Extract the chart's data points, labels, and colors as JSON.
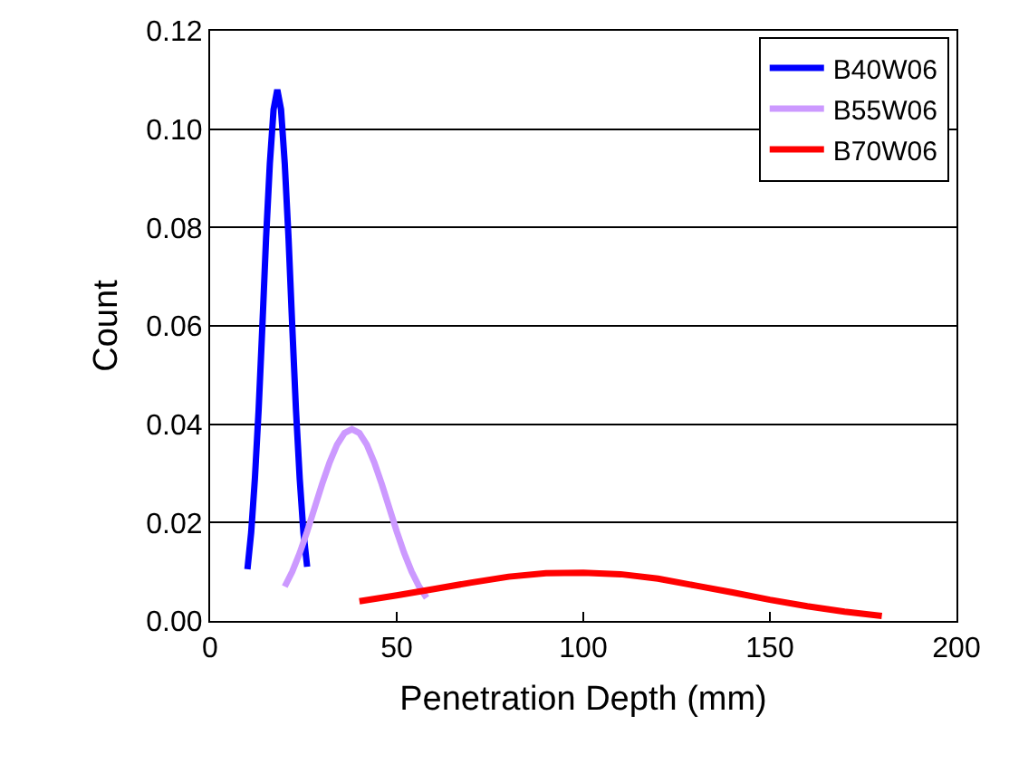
{
  "chart_data": {
    "type": "line",
    "xlabel": "Penetration Depth (mm)",
    "ylabel": "Count",
    "xlim": [
      0,
      200
    ],
    "xticks": [
      0,
      50,
      100,
      150,
      200
    ],
    "ylim": [
      0,
      0.12
    ],
    "yticks": [
      {
        "value": 0,
        "label": "0.00"
      },
      {
        "value": 0.02,
        "label": "0.02"
      },
      {
        "value": 0.04,
        "label": "0.04"
      },
      {
        "value": 0.06,
        "label": "0.06"
      },
      {
        "value": 0.08,
        "label": "0.08"
      },
      {
        "value": 0.1,
        "label": "0.10"
      },
      {
        "value": 0.12,
        "label": "0.12"
      }
    ],
    "grid": "y",
    "legend": "top right",
    "marker": "none",
    "line_style": "solid",
    "series": [
      {
        "name": "B40W06",
        "color": "#0000ff",
        "x": [
          10,
          11,
          12,
          13,
          14,
          15,
          16,
          17,
          18,
          19,
          20,
          21,
          22,
          23,
          24,
          25,
          26
        ],
        "values": [
          0.0105,
          0.018,
          0.029,
          0.043,
          0.06,
          0.078,
          0.093,
          0.104,
          0.108,
          0.104,
          0.093,
          0.078,
          0.06,
          0.043,
          0.029,
          0.018,
          0.011
        ]
      },
      {
        "name": "B55W06",
        "color": "#cc99ff",
        "x": [
          20,
          22,
          24,
          26,
          28,
          30,
          32,
          34,
          36,
          38,
          40,
          42,
          44,
          46,
          48,
          50,
          52,
          54,
          56,
          58
        ],
        "values": [
          0.007,
          0.01,
          0.0138,
          0.0182,
          0.023,
          0.0278,
          0.0322,
          0.0358,
          0.0382,
          0.039,
          0.0382,
          0.0358,
          0.0322,
          0.0278,
          0.023,
          0.0182,
          0.0138,
          0.01,
          0.007,
          0.0047
        ]
      },
      {
        "name": "B70W06",
        "color": "#ff0000",
        "x": [
          40,
          50,
          60,
          70,
          80,
          90,
          100,
          110,
          120,
          130,
          140,
          150,
          160,
          170,
          180
        ],
        "values": [
          0.004,
          0.0052,
          0.0065,
          0.0078,
          0.009,
          0.0097,
          0.0098,
          0.0095,
          0.0086,
          0.0072,
          0.0058,
          0.0043,
          0.003,
          0.0019,
          0.001
        ]
      }
    ]
  }
}
